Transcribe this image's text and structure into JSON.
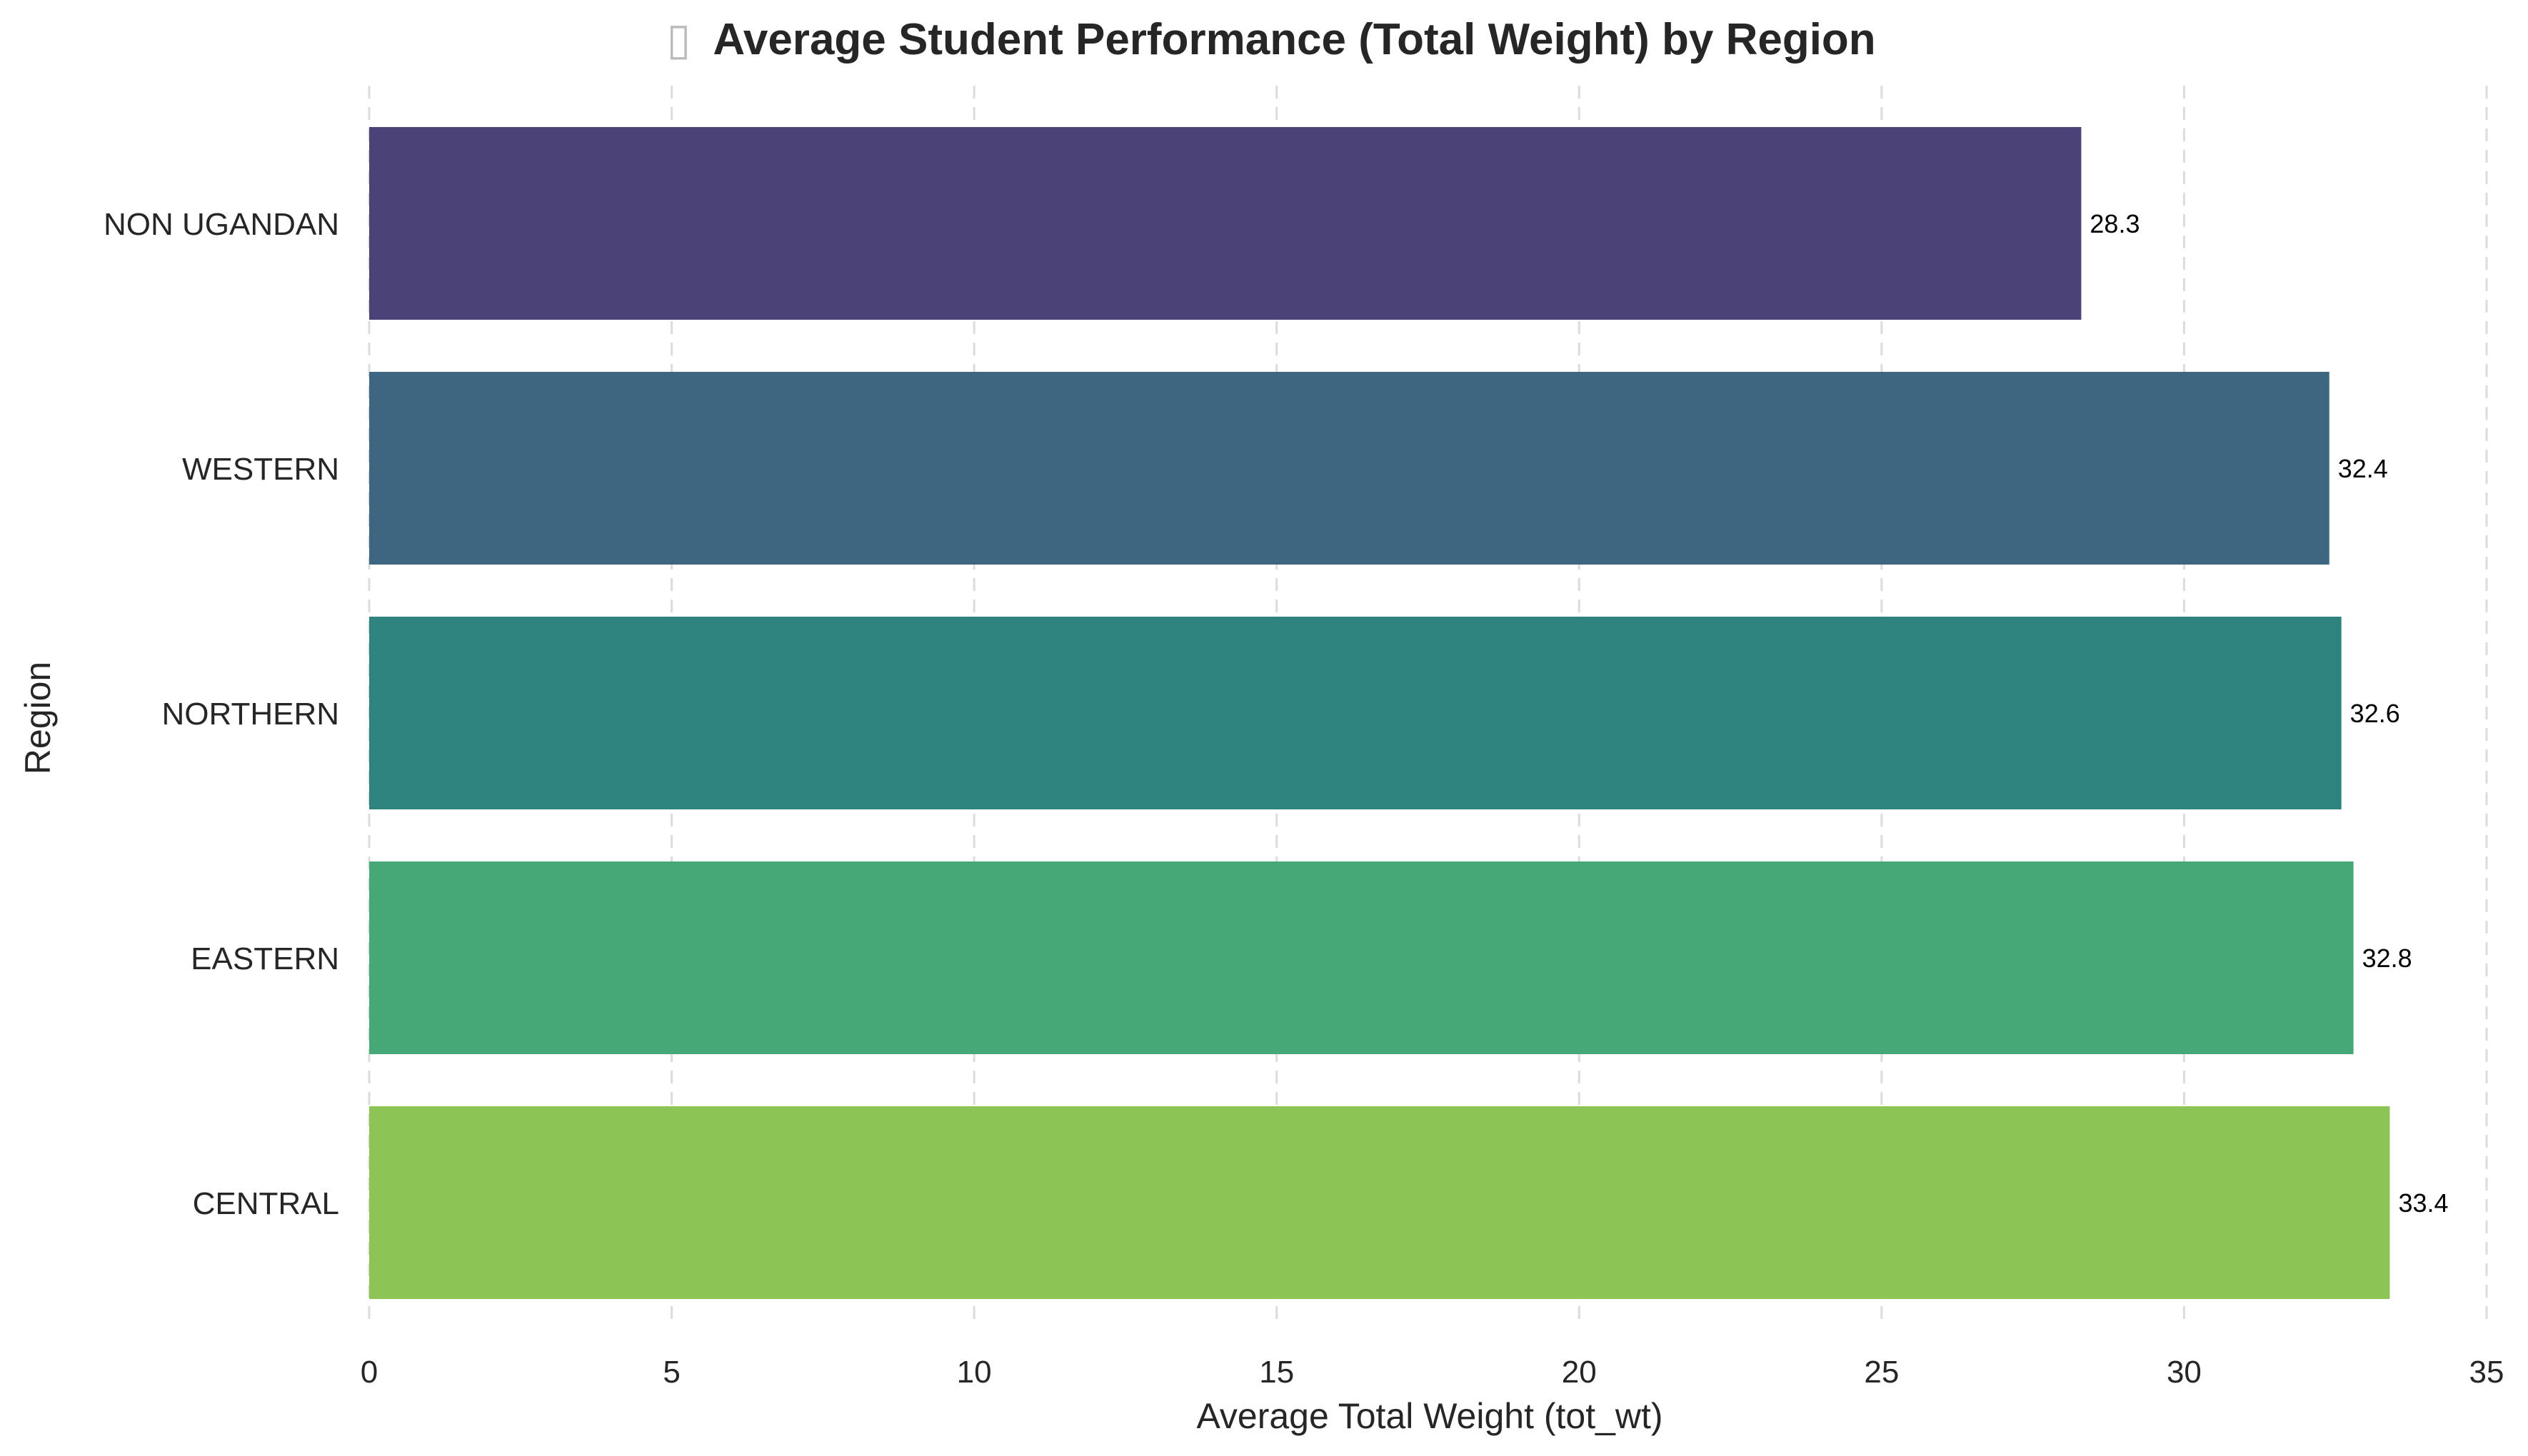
{
  "chart_data": {
    "type": "bar",
    "orientation": "horizontal",
    "title": "Average Student Performance (Total Weight) by Region",
    "title_icon": "▯",
    "xlabel": "Average Total Weight (tot_wt)",
    "ylabel": "Region",
    "categories": [
      "NON UGANDAN",
      "WESTERN",
      "NORTHERN",
      "EASTERN",
      "CENTRAL"
    ],
    "values": [
      28.3,
      32.4,
      32.6,
      32.8,
      33.4
    ],
    "value_labels": [
      "28.3",
      "32.4",
      "32.6",
      "32.8",
      "33.4"
    ],
    "colors": [
      "#4b4277",
      "#3d6680",
      "#2e837e",
      "#47a877",
      "#8dc456"
    ],
    "xlim": [
      0,
      35
    ],
    "xticks": [
      0,
      5,
      10,
      15,
      20,
      25,
      30,
      35
    ],
    "xtick_labels": [
      "0",
      "5",
      "10",
      "15",
      "20",
      "25",
      "30",
      "35"
    ],
    "grid": "x, dashed",
    "legend": "none"
  }
}
